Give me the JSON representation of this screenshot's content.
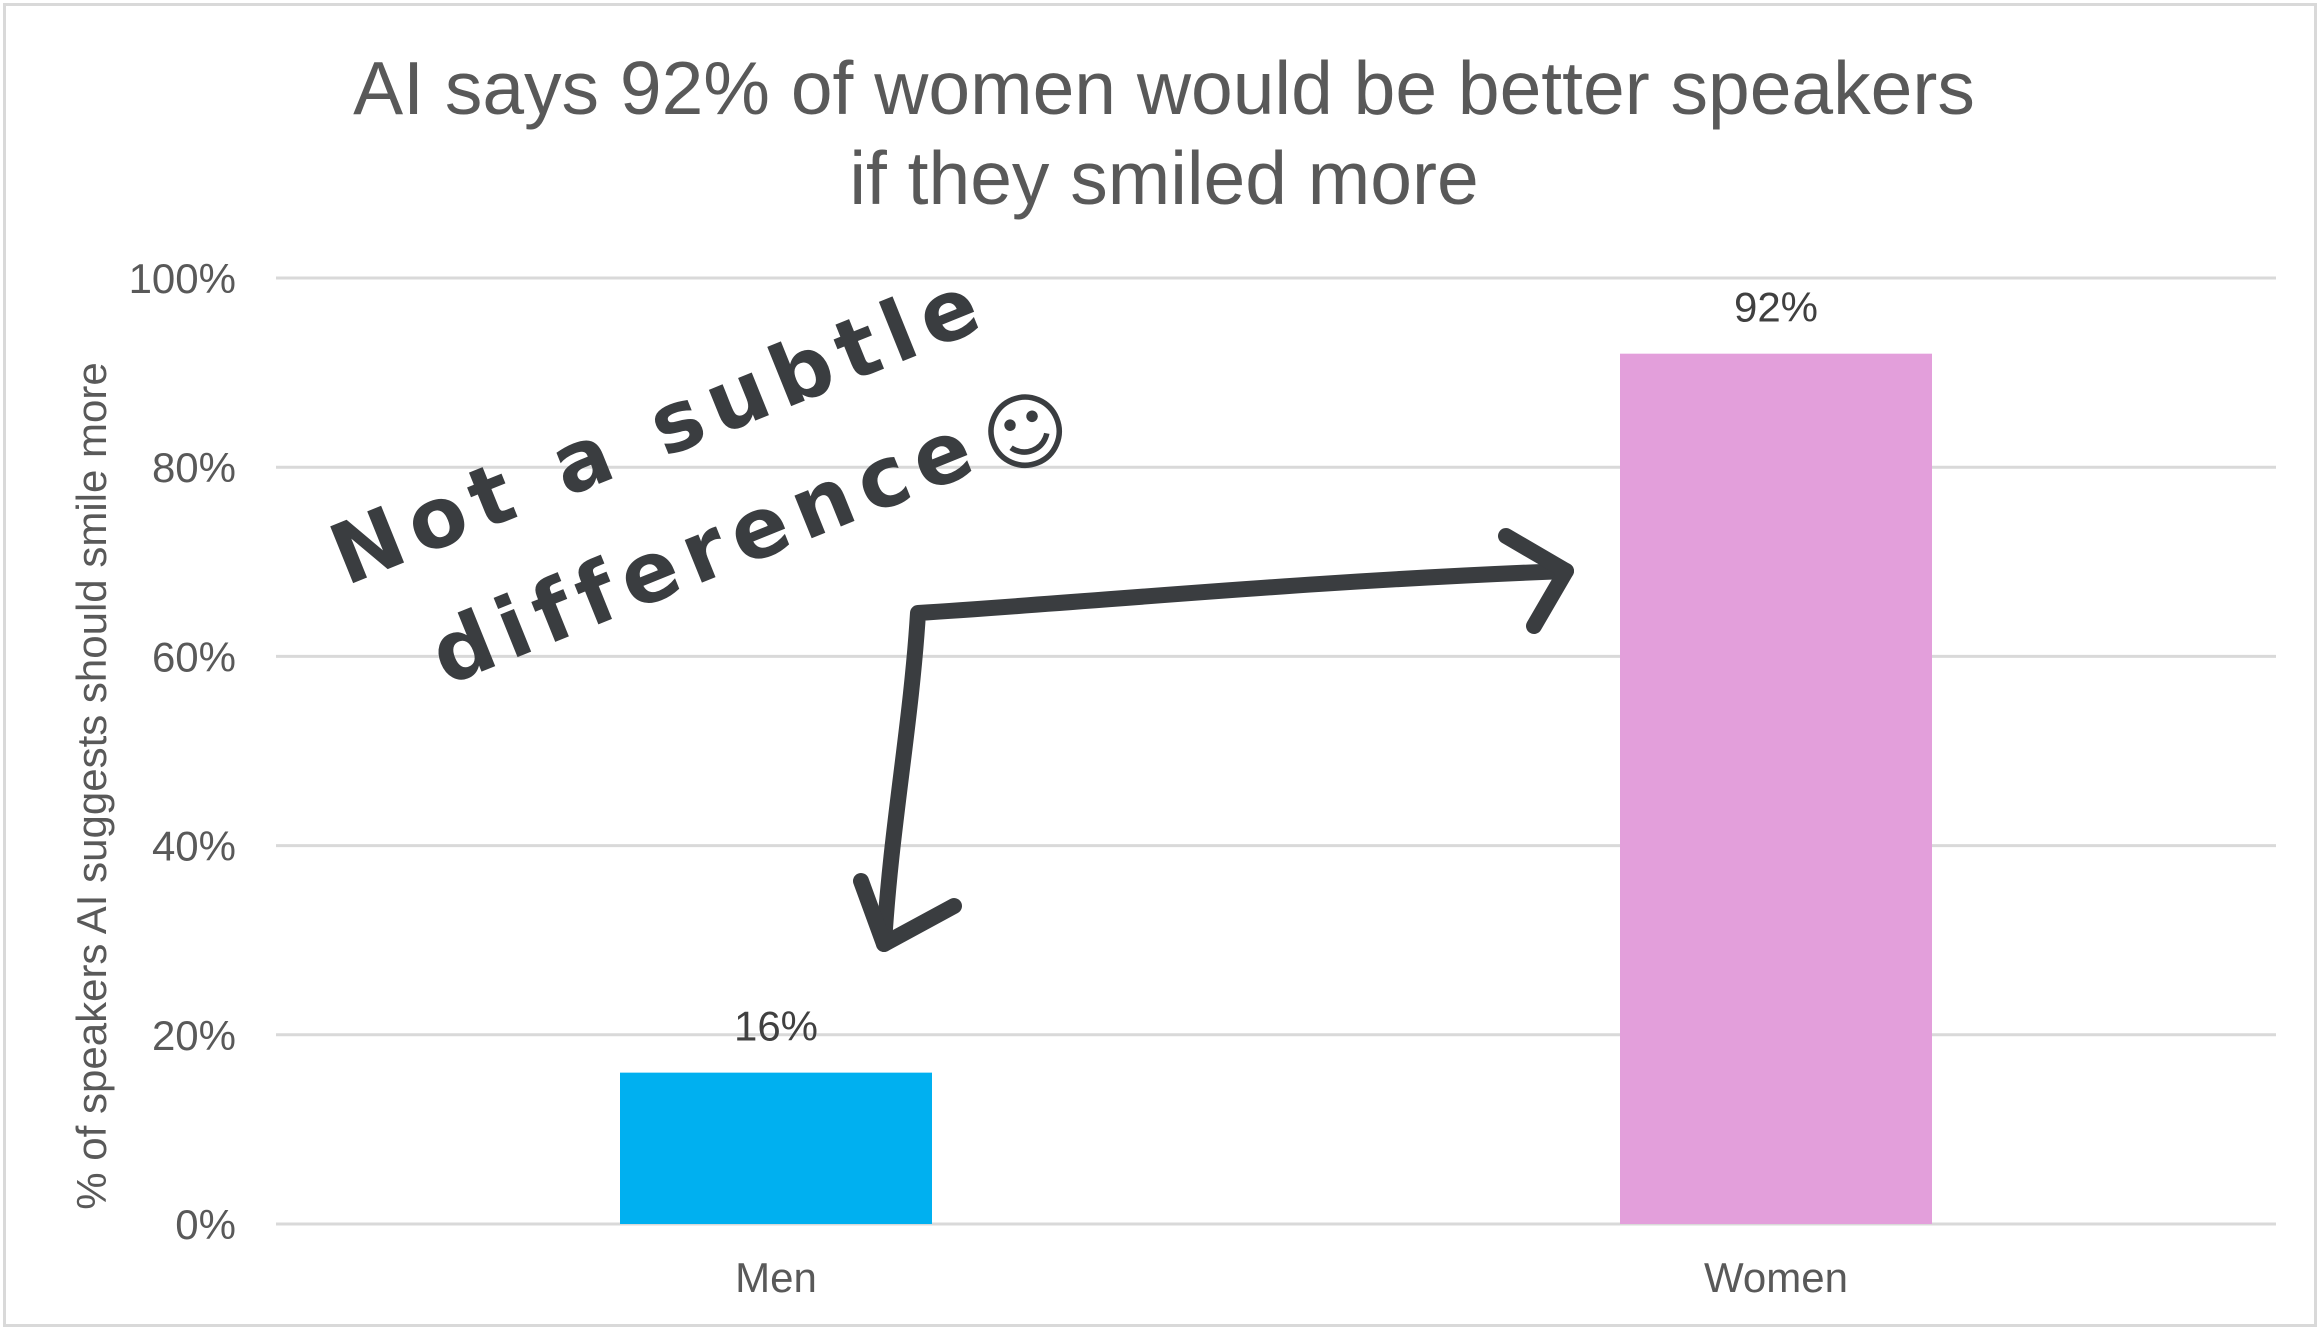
{
  "chart_data": {
    "type": "bar",
    "title": [
      "AI says 92% of women would be better speakers",
      "if they smiled more"
    ],
    "categories": [
      "Men",
      "Women"
    ],
    "values": [
      16,
      92
    ],
    "value_labels": [
      "16%",
      "92%"
    ],
    "ylabel": "% of speakers AI suggests should smile more",
    "xlabel": "",
    "ylim": [
      0,
      100
    ],
    "yticks": [
      "0%",
      "20%",
      "40%",
      "60%",
      "80%",
      "100%"
    ],
    "ytick_values": [
      0,
      20,
      40,
      60,
      80,
      100
    ],
    "grid": true,
    "bar_colors": [
      "#00b0f0",
      "#e39fdb"
    ],
    "annotation": {
      "line1": "Not a subtle",
      "line2": "difference",
      "smiley": "☺"
    }
  },
  "colors": {
    "grid": "#d9d9d9",
    "ink": "#3a3d40",
    "text": "#595959"
  }
}
